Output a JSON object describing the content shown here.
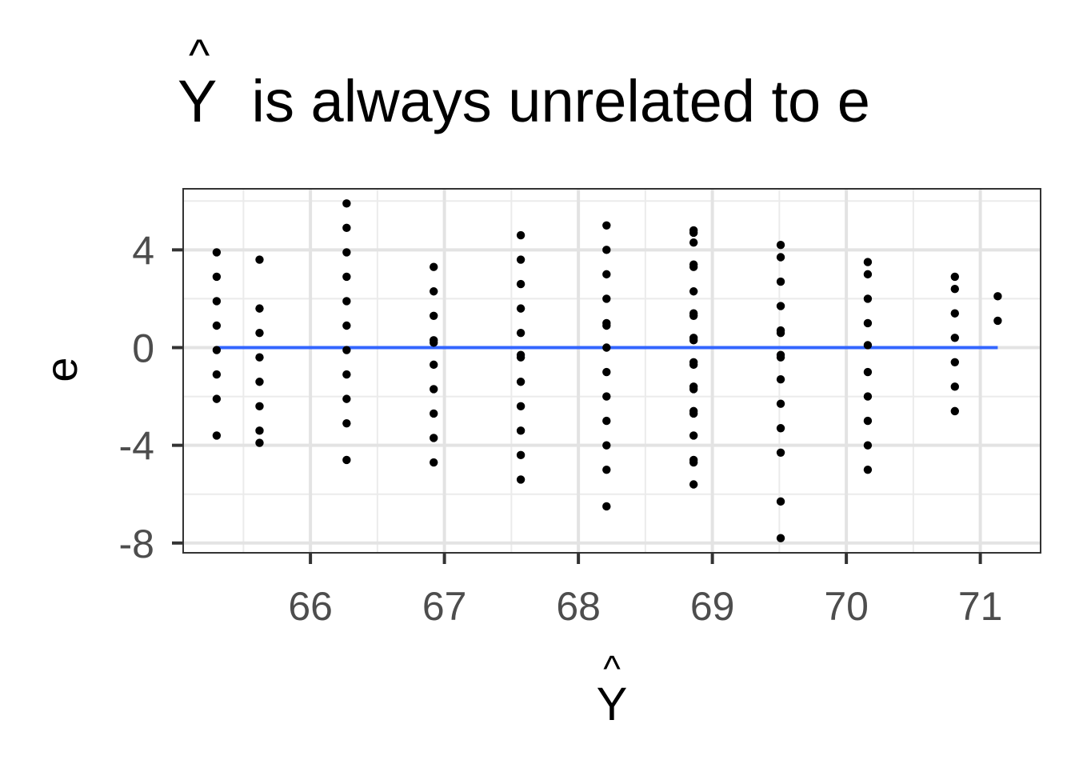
{
  "chart_data": {
    "type": "scatter",
    "title": "Ŷ is always unrelated to e",
    "title_parts": {
      "symbol": "Y",
      "hat": "^",
      "rest": " is always unrelated to e"
    },
    "xlabel": "Ŷ",
    "xlabel_parts": {
      "symbol": "Y",
      "hat": "^"
    },
    "ylabel": "e",
    "xlim": [
      65.05,
      71.45
    ],
    "ylim": [
      -8.4,
      6.5
    ],
    "x_ticks": [
      66,
      67,
      68,
      69,
      70,
      71
    ],
    "x_tick_labels": [
      "66",
      "67",
      "68",
      "69",
      "70",
      "71"
    ],
    "y_ticks": [
      4,
      0,
      -4,
      -8
    ],
    "y_tick_labels": [
      "4",
      "0",
      "-4",
      "-8"
    ],
    "grid": true,
    "point_color": "#000000",
    "points": [
      {
        "x": 65.3,
        "y": 3.9
      },
      {
        "x": 65.3,
        "y": 2.9
      },
      {
        "x": 65.3,
        "y": 1.9
      },
      {
        "x": 65.3,
        "y": 0.9
      },
      {
        "x": 65.3,
        "y": -0.1
      },
      {
        "x": 65.3,
        "y": -1.1
      },
      {
        "x": 65.3,
        "y": -2.1
      },
      {
        "x": 65.3,
        "y": -3.6
      },
      {
        "x": 65.62,
        "y": 3.6
      },
      {
        "x": 65.62,
        "y": 1.6
      },
      {
        "x": 65.62,
        "y": 0.6
      },
      {
        "x": 65.62,
        "y": -0.4
      },
      {
        "x": 65.62,
        "y": -1.4
      },
      {
        "x": 65.62,
        "y": -2.4
      },
      {
        "x": 65.62,
        "y": -3.4
      },
      {
        "x": 65.62,
        "y": -3.9
      },
      {
        "x": 66.27,
        "y": 5.9
      },
      {
        "x": 66.27,
        "y": 4.9
      },
      {
        "x": 66.27,
        "y": 3.9
      },
      {
        "x": 66.27,
        "y": 2.9
      },
      {
        "x": 66.27,
        "y": 1.9
      },
      {
        "x": 66.27,
        "y": 0.9
      },
      {
        "x": 66.27,
        "y": -0.1
      },
      {
        "x": 66.27,
        "y": -1.1
      },
      {
        "x": 66.27,
        "y": -2.1
      },
      {
        "x": 66.27,
        "y": -3.1
      },
      {
        "x": 66.27,
        "y": -4.6
      },
      {
        "x": 66.92,
        "y": 3.3
      },
      {
        "x": 66.92,
        "y": 2.3
      },
      {
        "x": 66.92,
        "y": 1.3
      },
      {
        "x": 66.92,
        "y": 0.3
      },
      {
        "x": 66.92,
        "y": 0.2
      },
      {
        "x": 66.92,
        "y": -0.7
      },
      {
        "x": 66.92,
        "y": -1.7
      },
      {
        "x": 66.92,
        "y": -2.7
      },
      {
        "x": 66.92,
        "y": -3.7
      },
      {
        "x": 66.92,
        "y": -4.7
      },
      {
        "x": 67.57,
        "y": 4.6
      },
      {
        "x": 67.57,
        "y": 3.6
      },
      {
        "x": 67.57,
        "y": 2.6
      },
      {
        "x": 67.57,
        "y": 1.6
      },
      {
        "x": 67.57,
        "y": 0.6
      },
      {
        "x": 67.57,
        "y": -0.3
      },
      {
        "x": 67.57,
        "y": -0.4
      },
      {
        "x": 67.57,
        "y": -1.4
      },
      {
        "x": 67.57,
        "y": -2.4
      },
      {
        "x": 67.57,
        "y": -3.4
      },
      {
        "x": 67.57,
        "y": -4.4
      },
      {
        "x": 67.57,
        "y": -5.4
      },
      {
        "x": 68.21,
        "y": 5.0
      },
      {
        "x": 68.21,
        "y": 4.0
      },
      {
        "x": 68.21,
        "y": 3.0
      },
      {
        "x": 68.21,
        "y": 2.0
      },
      {
        "x": 68.21,
        "y": 1.0
      },
      {
        "x": 68.21,
        "y": 0.9
      },
      {
        "x": 68.21,
        "y": 0.0
      },
      {
        "x": 68.21,
        "y": -1.0
      },
      {
        "x": 68.21,
        "y": -2.0
      },
      {
        "x": 68.21,
        "y": -3.0
      },
      {
        "x": 68.21,
        "y": -4.0
      },
      {
        "x": 68.21,
        "y": -5.0
      },
      {
        "x": 68.21,
        "y": -6.5
      },
      {
        "x": 68.86,
        "y": 4.8
      },
      {
        "x": 68.86,
        "y": 4.7
      },
      {
        "x": 68.86,
        "y": 4.3
      },
      {
        "x": 68.86,
        "y": 3.4
      },
      {
        "x": 68.86,
        "y": 3.3
      },
      {
        "x": 68.86,
        "y": 2.3
      },
      {
        "x": 68.86,
        "y": 1.4
      },
      {
        "x": 68.86,
        "y": 1.3
      },
      {
        "x": 68.86,
        "y": 0.4
      },
      {
        "x": 68.86,
        "y": 0.3
      },
      {
        "x": 68.86,
        "y": -0.6
      },
      {
        "x": 68.86,
        "y": -0.7
      },
      {
        "x": 68.86,
        "y": -1.6
      },
      {
        "x": 68.86,
        "y": -1.7
      },
      {
        "x": 68.86,
        "y": -2.6
      },
      {
        "x": 68.86,
        "y": -2.7
      },
      {
        "x": 68.86,
        "y": -3.6
      },
      {
        "x": 68.86,
        "y": -4.6
      },
      {
        "x": 68.86,
        "y": -4.7
      },
      {
        "x": 68.86,
        "y": -5.6
      },
      {
        "x": 69.51,
        "y": 4.2
      },
      {
        "x": 69.51,
        "y": 3.7
      },
      {
        "x": 69.51,
        "y": 2.7
      },
      {
        "x": 69.51,
        "y": 1.7
      },
      {
        "x": 69.51,
        "y": 0.7
      },
      {
        "x": 69.51,
        "y": 0.6
      },
      {
        "x": 69.51,
        "y": -0.3
      },
      {
        "x": 69.51,
        "y": -0.4
      },
      {
        "x": 69.51,
        "y": -1.3
      },
      {
        "x": 69.51,
        "y": -2.3
      },
      {
        "x": 69.51,
        "y": -3.3
      },
      {
        "x": 69.51,
        "y": -4.3
      },
      {
        "x": 69.51,
        "y": -6.3
      },
      {
        "x": 69.51,
        "y": -7.8
      },
      {
        "x": 70.16,
        "y": 3.5
      },
      {
        "x": 70.16,
        "y": 3.0
      },
      {
        "x": 70.16,
        "y": 2.0
      },
      {
        "x": 70.16,
        "y": 1.0
      },
      {
        "x": 70.16,
        "y": 0.1
      },
      {
        "x": 70.16,
        "y": -1.0
      },
      {
        "x": 70.16,
        "y": -2.0
      },
      {
        "x": 70.16,
        "y": -3.0
      },
      {
        "x": 70.16,
        "y": -4.0
      },
      {
        "x": 70.16,
        "y": -5.0
      },
      {
        "x": 70.81,
        "y": 2.9
      },
      {
        "x": 70.81,
        "y": 2.4
      },
      {
        "x": 70.81,
        "y": 1.4
      },
      {
        "x": 70.81,
        "y": 0.4
      },
      {
        "x": 70.81,
        "y": -0.6
      },
      {
        "x": 70.81,
        "y": -1.6
      },
      {
        "x": 70.81,
        "y": -2.6
      },
      {
        "x": 71.13,
        "y": 2.1
      },
      {
        "x": 71.13,
        "y": 1.1
      }
    ],
    "fit_line": {
      "x": [
        65.3,
        71.13
      ],
      "y": [
        0.0,
        0.0
      ],
      "color": "#3366ff"
    }
  }
}
